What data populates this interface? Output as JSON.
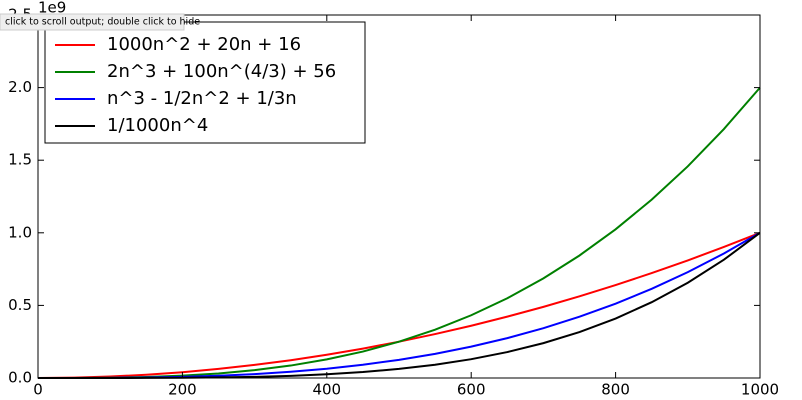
{
  "chart_data": {
    "type": "line",
    "tooltip": "click to scroll output; double click to hide",
    "y_offset_label": "1e9",
    "x": [
      0,
      50,
      100,
      150,
      200,
      250,
      300,
      350,
      400,
      450,
      500,
      550,
      600,
      650,
      700,
      750,
      800,
      850,
      900,
      950,
      1000
    ],
    "series": [
      {
        "name": "1000n^2 + 20n + 16",
        "color": "#ff0000",
        "values": [
          0,
          0.0025,
          0.01,
          0.0225,
          0.04,
          0.0625,
          0.09,
          0.1225,
          0.16,
          0.2025,
          0.25,
          0.3025,
          0.36,
          0.4225,
          0.49,
          0.5625,
          0.64,
          0.7225,
          0.81,
          0.9025,
          1.0
        ]
      },
      {
        "name": "2n^3 + 100n^(4/3) + 56",
        "color": "#008000",
        "values": [
          0,
          0.00025,
          0.002,
          0.00675,
          0.016,
          0.03125,
          0.054,
          0.08575,
          0.128,
          0.18225,
          0.25,
          0.33275,
          0.432,
          0.54925,
          0.686,
          0.84375,
          1.024,
          1.22825,
          1.458,
          1.71475,
          2.0
        ]
      },
      {
        "name": "n^3 - 1/2n^2 + 1/3n",
        "color": "#0000ff",
        "values": [
          0,
          0.000125,
          0.001,
          0.003375,
          0.008,
          0.015625,
          0.027,
          0.042875,
          0.064,
          0.091125,
          0.125,
          0.166375,
          0.216,
          0.274625,
          0.343,
          0.421875,
          0.512,
          0.614125,
          0.729,
          0.857375,
          1.0
        ]
      },
      {
        "name": "1/1000n^4",
        "color": "#000000",
        "values": [
          0,
          6.25e-06,
          0.0001,
          0.00050625,
          0.0016,
          0.00390625,
          0.0081,
          0.01500625,
          0.0256,
          0.04100625,
          0.0625,
          0.09150625,
          0.1296,
          0.17850625,
          0.2401,
          0.31640625,
          0.4096,
          0.52200625,
          0.6561,
          0.81450625,
          1.0
        ]
      }
    ],
    "xlim": [
      0,
      1000
    ],
    "xticks": [
      0,
      200,
      400,
      600,
      800,
      1000
    ],
    "ylim": [
      0,
      2.5
    ],
    "yticks": [
      {
        "value": 0,
        "label": "0.0"
      },
      0.5,
      {
        "value": 1,
        "label": "1.0"
      },
      1.5,
      {
        "value": 2,
        "label": "2.0"
      },
      2.5
    ],
    "legend": "upper left"
  }
}
